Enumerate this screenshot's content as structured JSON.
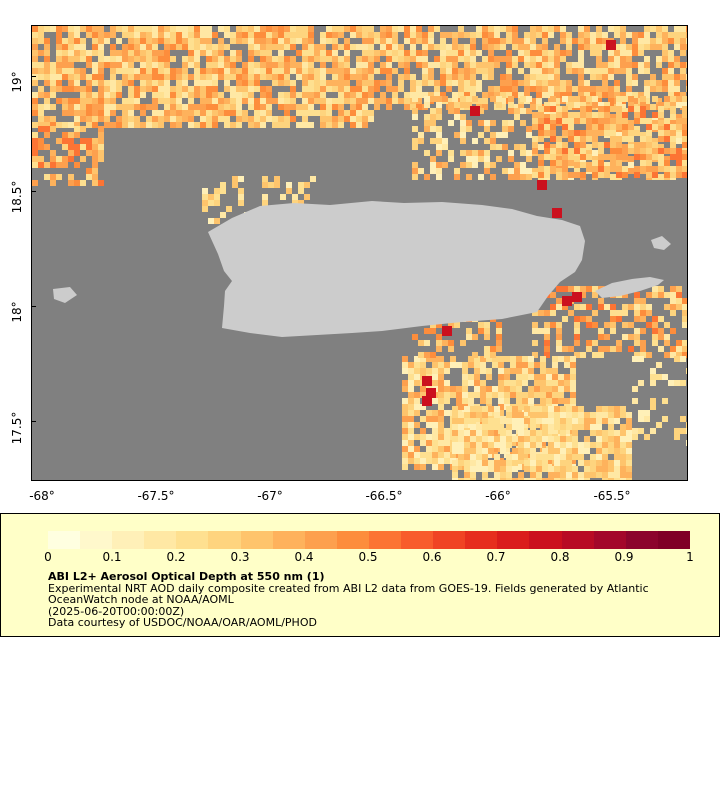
{
  "map": {
    "lat_ticks": [
      "19°",
      "18.5°",
      "18°",
      "17.5°"
    ],
    "lon_ticks": [
      "-68°",
      "-67.5°",
      "-67°",
      "-66.5°",
      "-66°",
      "-65.5°"
    ],
    "extent": {
      "lon": [
        -68.03,
        -65.2
      ],
      "lat": [
        17.25,
        19.23
      ]
    },
    "land_color": "#cccccc",
    "nodata_color": "#808080"
  },
  "colorbar": {
    "tick_labels": [
      "0",
      "0.1",
      "0.2",
      "0.3",
      "0.4",
      "0.5",
      "0.6",
      "0.7",
      "0.8",
      "0.9",
      "1"
    ],
    "range": [
      0,
      1
    ],
    "colors": [
      "#ffffe0",
      "#fff8cc",
      "#fff0b8",
      "#ffe8a4",
      "#fee090",
      "#fed47e",
      "#fec46c",
      "#feb25c",
      "#fda04e",
      "#fd8d3c",
      "#fc7434",
      "#f85c2c",
      "#f04424",
      "#e62e1e",
      "#da1c1c",
      "#cb101e",
      "#b80b24",
      "#a3072a",
      "#8c042c",
      "#800026"
    ]
  },
  "legend": {
    "title": "ABI L2+ Aerosol Optical Depth at 550 nm (1)",
    "line1": "Experimental NRT AOD daily composite created from ABI L2 data from GOES-19. Fields generated by Atlantic OceanWatch node at NOAA/AOML",
    "line2": "(2025-06-20T00:00:00Z)",
    "line3": "Data courtesy of USDOC/NOAA/OAR/AOML/PHOD"
  }
}
